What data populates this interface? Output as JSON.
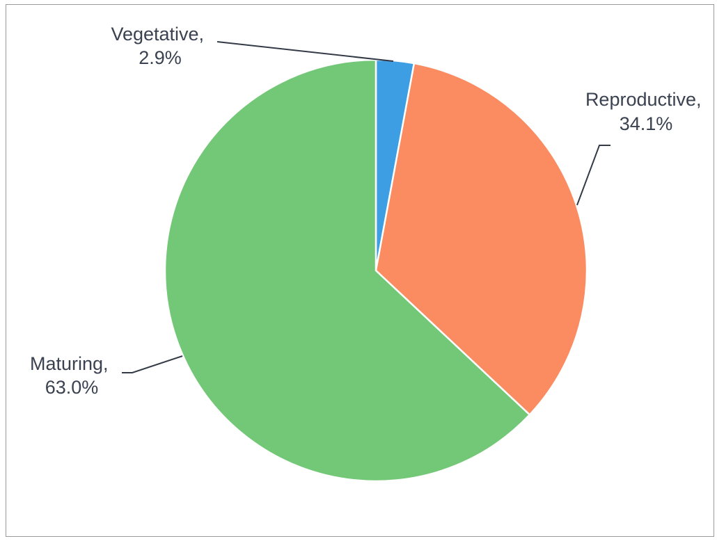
{
  "chart_data": {
    "type": "pie",
    "title": "",
    "slices": [
      {
        "name": "Vegetative",
        "value": 2.9,
        "label_name": "Vegetative,",
        "label_value": "2.9%",
        "color": "#3d9ee4"
      },
      {
        "name": "Reproductive",
        "value": 34.1,
        "label_name": "Reproductive,",
        "label_value": "34.1%",
        "color": "#fb8b61"
      },
      {
        "name": "Maturing",
        "value": 63.0,
        "label_name": "Maturing,",
        "label_value": "63.0%",
        "color": "#72c876"
      }
    ],
    "start_angle": "12 o'clock",
    "direction": "clockwise",
    "legend": "none",
    "data_labels": "outside with leader lines"
  }
}
